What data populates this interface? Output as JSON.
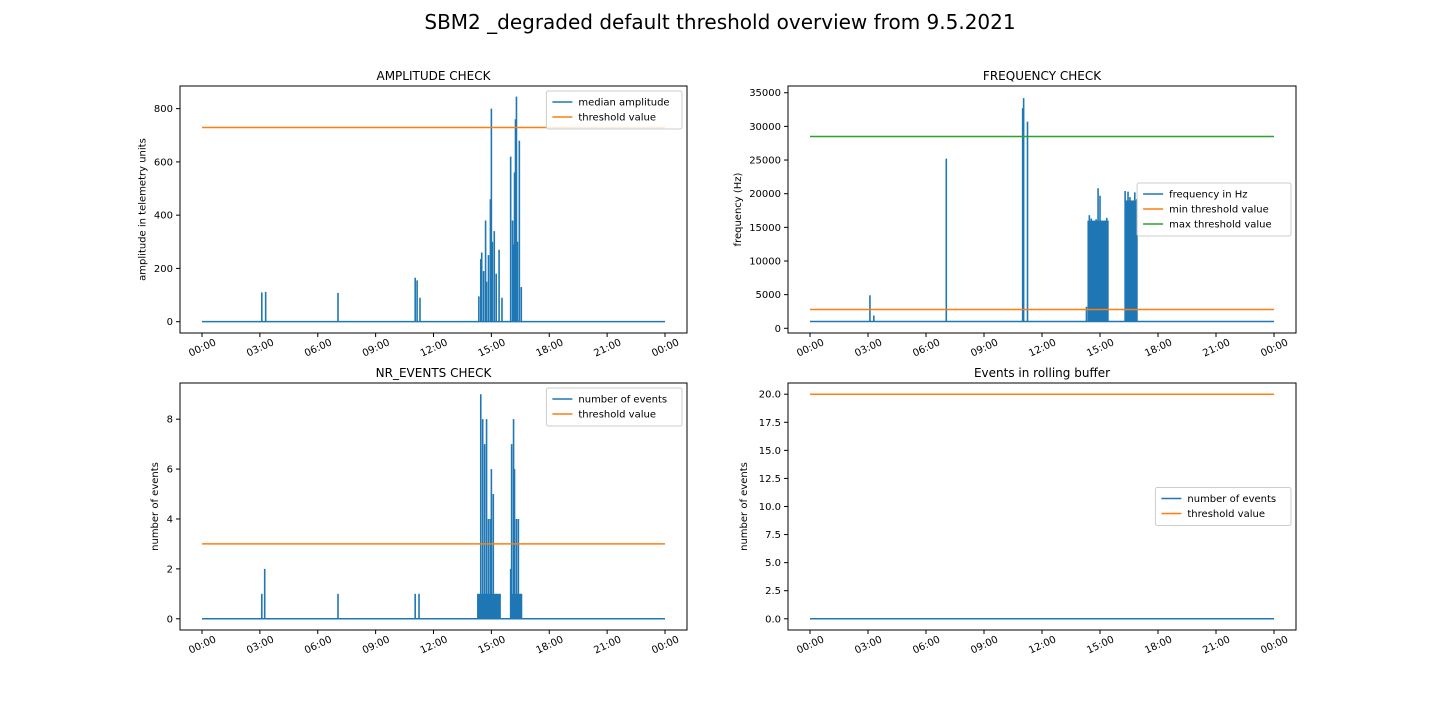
{
  "figure": {
    "suptitle": "SBM2 _degraded default threshold overview from 9.5.2021"
  },
  "colors": {
    "blue": "#1f77b4",
    "orange": "#ff7f0e",
    "green": "#2ca02c",
    "axis": "#000000"
  },
  "chart_data": [
    {
      "type": "line",
      "title": "AMPLITUDE CHECK",
      "xlabel": "",
      "ylabel": "amplitude in telemetry units",
      "xlim": [
        0,
        24
      ],
      "ylim": [
        -42.5,
        885
      ],
      "x_ticks": [
        0,
        3,
        6,
        9,
        12,
        15,
        18,
        21,
        24
      ],
      "x_tick_labels": [
        "00:00",
        "03:00",
        "06:00",
        "09:00",
        "12:00",
        "15:00",
        "18:00",
        "21:00",
        "00:00"
      ],
      "y_ticks": [
        0,
        200,
        400,
        600,
        800
      ],
      "y_tick_labels": [
        "0",
        "200",
        "400",
        "600",
        "800"
      ],
      "legend_position": "upper right",
      "series": [
        {
          "name": "median amplitude",
          "color": "#1f77b4",
          "style": "spikes",
          "baseline": 0,
          "spikes": [
            [
              3.1,
              110
            ],
            [
              3.3,
              112
            ],
            [
              7.05,
              108
            ],
            [
              11.05,
              165
            ],
            [
              11.15,
              155
            ],
            [
              11.3,
              90
            ],
            [
              14.35,
              95
            ],
            [
              14.45,
              235
            ],
            [
              14.5,
              260
            ],
            [
              14.6,
              190
            ],
            [
              14.7,
              380
            ],
            [
              14.75,
              150
            ],
            [
              14.85,
              250
            ],
            [
              14.95,
              460
            ],
            [
              15.0,
              800
            ],
            [
              15.05,
              300
            ],
            [
              15.15,
              340
            ],
            [
              15.25,
              180
            ],
            [
              15.4,
              270
            ],
            [
              15.55,
              90
            ],
            [
              16.0,
              620
            ],
            [
              16.1,
              380
            ],
            [
              16.15,
              290
            ],
            [
              16.2,
              560
            ],
            [
              16.25,
              760
            ],
            [
              16.3,
              845
            ],
            [
              16.35,
              300
            ],
            [
              16.45,
              680
            ],
            [
              16.55,
              130
            ]
          ]
        },
        {
          "name": "threshold value",
          "color": "#ff7f0e",
          "style": "hline",
          "y": 729
        }
      ]
    },
    {
      "type": "line",
      "title": "FREQUENCY CHECK",
      "xlabel": "",
      "ylabel": "frequency (Hz)",
      "xlim": [
        0,
        24
      ],
      "ylim": [
        -700,
        36000
      ],
      "x_ticks": [
        0,
        3,
        6,
        9,
        12,
        15,
        18,
        21,
        24
      ],
      "x_tick_labels": [
        "00:00",
        "03:00",
        "06:00",
        "09:00",
        "12:00",
        "15:00",
        "18:00",
        "21:00",
        "00:00"
      ],
      "y_ticks": [
        0,
        5000,
        10000,
        15000,
        20000,
        25000,
        30000,
        35000
      ],
      "y_tick_labels": [
        "0",
        "5000",
        "10000",
        "15000",
        "20000",
        "25000",
        "30000",
        "35000"
      ],
      "legend_position": "center right",
      "series": [
        {
          "name": "frequency in Hz",
          "color": "#1f77b4",
          "style": "spikes",
          "baseline": 1000,
          "spikes": [
            [
              3.1,
              4900
            ],
            [
              3.3,
              1900
            ],
            [
              7.05,
              25200
            ],
            [
              11.0,
              32700
            ],
            [
              11.05,
              34200
            ],
            [
              11.25,
              30700
            ],
            [
              14.3,
              3200
            ],
            [
              14.45,
              16800
            ],
            [
              14.55,
              16300
            ],
            [
              14.65,
              15800
            ],
            [
              14.8,
              16200
            ],
            [
              14.9,
              20800
            ],
            [
              15.0,
              19700
            ],
            [
              15.1,
              15200
            ],
            [
              15.25,
              16000
            ],
            [
              15.35,
              16400
            ],
            [
              16.3,
              20400
            ],
            [
              16.45,
              20300
            ],
            [
              16.55,
              19500
            ],
            [
              16.65,
              18800
            ],
            [
              16.8,
              20200
            ],
            [
              16.9,
              19200
            ]
          ],
          "blocks": [
            [
              14.35,
              15.45,
              16000
            ],
            [
              16.3,
              16.95,
              19000
            ]
          ]
        },
        {
          "name": "min threshold value",
          "color": "#ff7f0e",
          "style": "hline",
          "y": 2800
        },
        {
          "name": "max threshold value",
          "color": "#2ca02c",
          "style": "hline",
          "y": 28500
        }
      ]
    },
    {
      "type": "line",
      "title": "NR_EVENTS CHECK",
      "xlabel": "",
      "ylabel": "number of events",
      "xlim": [
        0,
        24
      ],
      "ylim": [
        -0.45,
        9.45
      ],
      "x_ticks": [
        0,
        3,
        6,
        9,
        12,
        15,
        18,
        21,
        24
      ],
      "x_tick_labels": [
        "00:00",
        "03:00",
        "06:00",
        "09:00",
        "12:00",
        "15:00",
        "18:00",
        "21:00",
        "00:00"
      ],
      "y_ticks": [
        0,
        2,
        4,
        6,
        8
      ],
      "y_tick_labels": [
        "0",
        "2",
        "4",
        "6",
        "8"
      ],
      "legend_position": "upper right",
      "series": [
        {
          "name": "number of events",
          "color": "#1f77b4",
          "style": "spikes",
          "baseline": 0,
          "spikes": [
            [
              3.1,
              1
            ],
            [
              3.25,
              2
            ],
            [
              7.05,
              1
            ],
            [
              11.05,
              1
            ],
            [
              11.25,
              1
            ],
            [
              14.3,
              1
            ],
            [
              14.45,
              9
            ],
            [
              14.55,
              8
            ],
            [
              14.65,
              7
            ],
            [
              14.75,
              8
            ],
            [
              14.85,
              4
            ],
            [
              14.95,
              4
            ],
            [
              15.0,
              6
            ],
            [
              15.1,
              5
            ],
            [
              15.25,
              1
            ],
            [
              15.45,
              1
            ],
            [
              16.0,
              2
            ],
            [
              16.05,
              7
            ],
            [
              16.15,
              8
            ],
            [
              16.2,
              6
            ],
            [
              16.3,
              4
            ],
            [
              16.4,
              4
            ],
            [
              16.55,
              1
            ]
          ],
          "blocks": [
            [
              14.3,
              15.45,
              1
            ],
            [
              16.0,
              16.6,
              1
            ]
          ]
        },
        {
          "name": "threshold value",
          "color": "#ff7f0e",
          "style": "hline",
          "y": 3
        }
      ]
    },
    {
      "type": "line",
      "title": "Events in rolling buffer",
      "xlabel": "",
      "ylabel": "number of events",
      "xlim": [
        0,
        24
      ],
      "ylim": [
        -1.0,
        21.0
      ],
      "x_ticks": [
        0,
        3,
        6,
        9,
        12,
        15,
        18,
        21,
        24
      ],
      "x_tick_labels": [
        "00:00",
        "03:00",
        "06:00",
        "09:00",
        "12:00",
        "15:00",
        "18:00",
        "21:00",
        "00:00"
      ],
      "y_ticks": [
        0,
        2.5,
        5,
        7.5,
        10,
        12.5,
        15,
        17.5,
        20
      ],
      "y_tick_labels": [
        "0.0",
        "2.5",
        "5.0",
        "7.5",
        "10.0",
        "12.5",
        "15.0",
        "17.5",
        "20.0"
      ],
      "legend_position": "center right",
      "series": [
        {
          "name": "number of events",
          "color": "#1f77b4",
          "style": "hline",
          "y": 0
        },
        {
          "name": "threshold value",
          "color": "#ff7f0e",
          "style": "hline",
          "y": 20
        }
      ]
    }
  ]
}
